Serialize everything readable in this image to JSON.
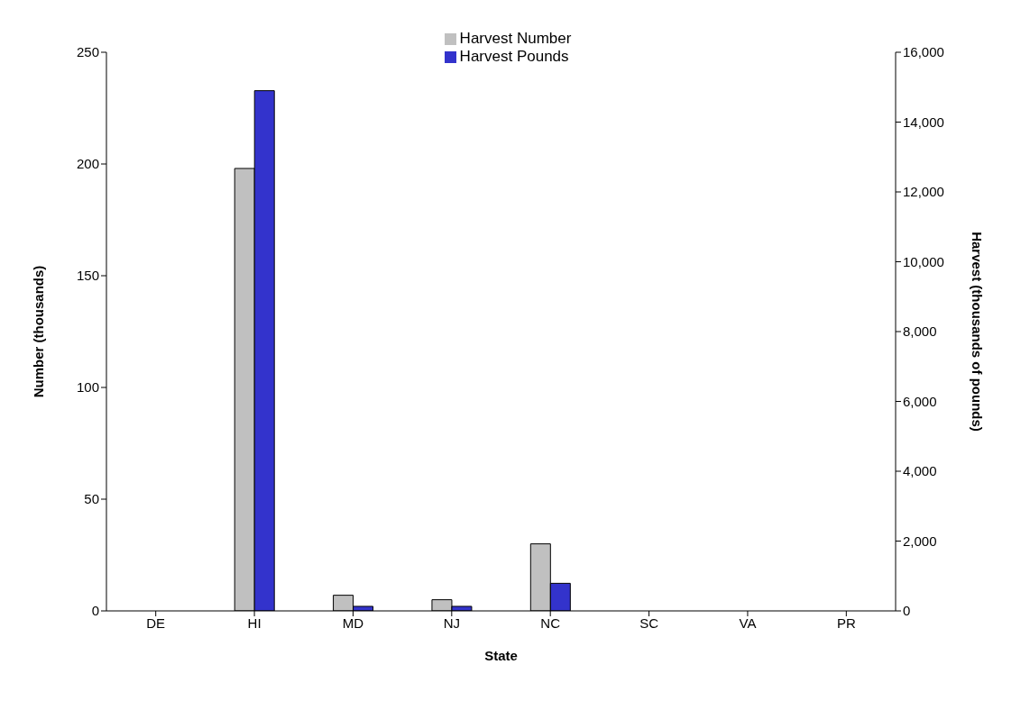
{
  "chart_data": {
    "type": "bar",
    "xlabel": "State",
    "ylabel": "Number (thousands)",
    "y2label": "Harvest (thousands of pounds)",
    "categories": [
      "DE",
      "HI",
      "MD",
      "NJ",
      "NC",
      "SC",
      "VA",
      "PR"
    ],
    "series": [
      {
        "name": "Harvest Number",
        "color": "#c0c0c0",
        "values": [
          0,
          198,
          7,
          5,
          30,
          0,
          0,
          0
        ]
      },
      {
        "name": "Harvest Pounds",
        "color": "#3333cc",
        "axis": "y2",
        "values": [
          0,
          14900,
          130,
          130,
          790,
          0,
          0,
          0
        ]
      }
    ],
    "ylim": [
      0,
      250
    ],
    "yticks": [
      0,
      50,
      100,
      150,
      200,
      250
    ],
    "y2lim": [
      0,
      16000
    ],
    "y2ticks": [
      0,
      {
        "value": 2000,
        "label": "2,000"
      },
      {
        "value": 4000,
        "label": "4,000"
      },
      {
        "value": 6000,
        "label": "6,000"
      },
      {
        "value": 8000,
        "label": "8,000"
      },
      {
        "value": 10000,
        "label": "10,000"
      },
      {
        "value": 12000,
        "label": "12,000"
      },
      {
        "value": 14000,
        "label": "14,000"
      },
      {
        "value": 16000,
        "label": "16,000"
      }
    ],
    "grid": false,
    "legend": "top"
  }
}
